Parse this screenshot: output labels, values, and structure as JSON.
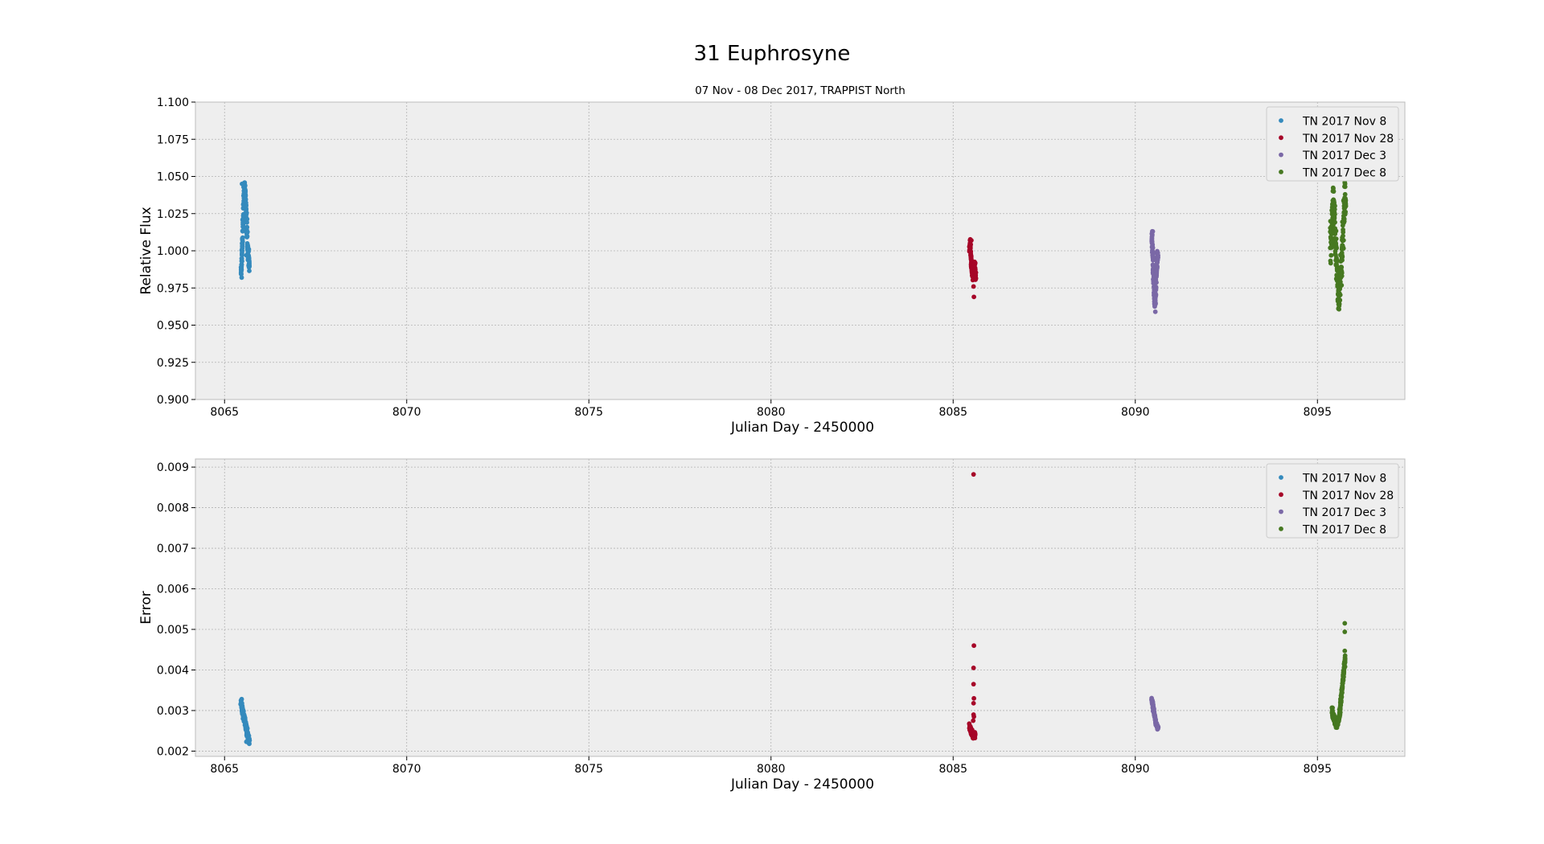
{
  "figure": {
    "title": "31 Euphrosyne"
  },
  "colors": {
    "TN 2017 Nov 8": "#348ABD",
    "TN 2017 Nov 28": "#A60628",
    "TN 2017 Dec 3": "#7A68A6",
    "TN 2017 Dec 8": "#467821",
    "axes_bg": "#EEEEEE",
    "grid": "#B2B2B2",
    "spine": "#BCBCBC"
  },
  "chart_data": [
    {
      "type": "scatter",
      "title": "",
      "subtitle": "07 Nov - 08 Dec 2017, TRAPPIST North",
      "xlabel": "Julian Day  - 2450000",
      "ylabel": "Relative Flux",
      "xlim": [
        8064.2,
        8097.4
      ],
      "ylim": [
        0.9,
        1.1
      ],
      "xticks": [
        8065,
        8070,
        8075,
        8080,
        8085,
        8090,
        8095
      ],
      "yticks": [
        0.9,
        0.925,
        0.95,
        0.975,
        1.0,
        1.025,
        1.05,
        1.075,
        1.1
      ],
      "ytick_decimals": 3,
      "grid": true,
      "legend_position": "top-right",
      "legend": [
        "TN 2017 Nov 8",
        "TN 2017 Nov 28",
        "TN 2017 Dec 3",
        "TN 2017 Dec 8"
      ],
      "series": [
        {
          "name": "TN 2017 Nov 8",
          "x_range": [
            8065.45,
            8065.68
          ],
          "y_profile": [
            0.985,
            0.99,
            1.005,
            1.02,
            1.035,
            1.045,
            1.04,
            1.03,
            1.02,
            1.01,
            1.0,
            0.995,
            0.99
          ],
          "y_spread": 0.004,
          "n_points": 170,
          "points": [
            [
              8065.47,
              0.982
            ],
            [
              8065.48,
              1.045
            ],
            [
              8065.66,
              0.99
            ],
            [
              8065.6,
              0.997
            ]
          ]
        },
        {
          "name": "TN 2017 Nov 28",
          "x_range": [
            8085.45,
            8085.62
          ],
          "y_profile": [
            1.0,
            1.006,
            1.0,
            0.995,
            0.99,
            0.986,
            0.983,
            0.985,
            0.988,
            0.99,
            0.992,
            0.985,
            0.982
          ],
          "y_spread": 0.003,
          "n_points": 130,
          "points": [
            [
              8085.5,
              1.007
            ],
            [
              8085.56,
              0.976
            ],
            [
              8085.57,
              0.969
            ]
          ]
        },
        {
          "name": "TN 2017 Dec 3",
          "x_range": [
            8090.45,
            8090.62
          ],
          "y_profile": [
            1.01,
            1.005,
            0.995,
            0.985,
            0.975,
            0.968,
            0.965,
            0.972,
            0.982,
            0.99,
            0.995,
            0.998
          ],
          "y_spread": 0.005,
          "n_points": 150,
          "points": [
            [
              8090.48,
              1.013
            ],
            [
              8090.55,
              0.959
            ]
          ]
        },
        {
          "name": "TN 2017 Dec 8",
          "x_range": [
            8095.35,
            8095.78
          ],
          "y_profile": [
            1.0,
            1.01,
            1.025,
            1.035,
            1.02,
            1.0,
            0.985,
            0.975,
            0.968,
            0.975,
            0.99,
            1.005,
            1.02,
            1.035,
            1.042
          ],
          "y_spread": 0.012,
          "n_points": 240,
          "points": [
            [
              8095.58,
              0.964
            ],
            [
              8095.75,
              1.046
            ]
          ]
        }
      ]
    },
    {
      "type": "scatter",
      "title": "",
      "xlabel": "Julian Day - 2450000",
      "ylabel": "Error",
      "xlim": [
        8064.2,
        8097.4
      ],
      "ylim": [
        0.00187,
        0.0092
      ],
      "xticks": [
        8065,
        8070,
        8075,
        8080,
        8085,
        8090,
        8095
      ],
      "yticks": [
        0.002,
        0.003,
        0.004,
        0.005,
        0.006,
        0.007,
        0.008,
        0.009
      ],
      "ytick_decimals": 3,
      "grid": true,
      "legend_position": "top-right",
      "legend": [
        "TN 2017 Nov 8",
        "TN 2017 Nov 28",
        "TN 2017 Dec 3",
        "TN 2017 Dec 8"
      ],
      "series": [
        {
          "name": "TN 2017 Nov 8",
          "x_range": [
            8065.45,
            8065.68
          ],
          "y_profile": [
            0.0032,
            0.0031,
            0.003,
            0.0029,
            0.0028,
            0.0027,
            0.0026,
            0.0025,
            0.0024,
            0.0023,
            0.00225
          ],
          "y_spread": 0.0001,
          "n_points": 150,
          "points": [
            [
              8065.47,
              0.00328
            ],
            [
              8065.6,
              0.00223
            ]
          ]
        },
        {
          "name": "TN 2017 Nov 28",
          "x_range": [
            8085.45,
            8085.6
          ],
          "y_profile": [
            0.0026,
            0.00255,
            0.0025,
            0.00245,
            0.0024,
            0.00238,
            0.00236,
            0.0024
          ],
          "y_spread": 6e-05,
          "n_points": 120,
          "points": [
            [
              8085.56,
              0.00882
            ],
            [
              8085.57,
              0.0046
            ],
            [
              8085.56,
              0.00405
            ],
            [
              8085.56,
              0.00365
            ],
            [
              8085.57,
              0.0033
            ],
            [
              8085.56,
              0.00318
            ],
            [
              8085.56,
              0.0029
            ],
            [
              8085.57,
              0.00285
            ],
            [
              8085.55,
              0.00275
            ]
          ]
        },
        {
          "name": "TN 2017 Dec 3",
          "x_range": [
            8090.45,
            8090.62
          ],
          "y_profile": [
            0.00325,
            0.0032,
            0.0031,
            0.003,
            0.0029,
            0.0028,
            0.0027,
            0.00265,
            0.0026,
            0.00257
          ],
          "y_spread": 4e-05,
          "n_points": 120,
          "points": [
            [
              8090.62,
              0.00255
            ]
          ]
        },
        {
          "name": "TN 2017 Dec 8",
          "x_range": [
            8095.4,
            8095.76
          ],
          "y_profile": [
            0.00305,
            0.0029,
            0.0028,
            0.0027,
            0.00265,
            0.0027,
            0.0028,
            0.0031,
            0.0034,
            0.0037,
            0.004,
            0.0043
          ],
          "y_spread": 8e-05,
          "n_points": 200,
          "points": [
            [
              8095.75,
              0.00515
            ],
            [
              8095.75,
              0.00494
            ],
            [
              8095.75,
              0.00447
            ],
            [
              8095.74,
              0.0042
            ]
          ]
        }
      ]
    }
  ]
}
